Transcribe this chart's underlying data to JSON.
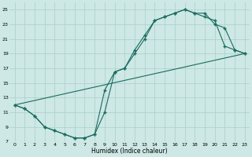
{
  "xlabel": "Humidex (Indice chaleur)",
  "background_color": "#cde8e5",
  "grid_color": "#aacfcc",
  "line_color": "#1a6b5e",
  "line1_x": [
    0,
    1,
    2,
    3,
    4,
    5,
    6,
    7,
    8,
    9,
    10,
    11,
    12,
    13,
    14,
    15,
    16,
    17,
    18,
    19,
    20,
    21,
    22,
    23
  ],
  "line1_y": [
    12,
    11.5,
    10.5,
    9.0,
    8.5,
    8.0,
    7.5,
    7.5,
    8.0,
    14.0,
    16.5,
    17.0,
    19.5,
    21.5,
    23.5,
    24.0,
    24.5,
    25.0,
    24.5,
    24.5,
    23.0,
    22.5,
    19.5,
    19.0
  ],
  "line2_x": [
    0,
    1,
    2,
    3,
    4,
    5,
    6,
    7,
    8,
    9,
    10,
    11,
    12,
    13,
    14,
    15,
    16,
    17,
    18,
    19,
    20,
    21,
    22,
    23
  ],
  "line2_y": [
    12,
    11.5,
    10.5,
    9.0,
    8.5,
    8.0,
    7.5,
    7.5,
    8.0,
    11.0,
    16.5,
    17.0,
    19.0,
    21.0,
    23.5,
    24.0,
    24.5,
    25.0,
    24.5,
    24.0,
    23.5,
    20.0,
    19.5,
    19.0
  ],
  "line3_x": [
    0,
    23
  ],
  "line3_y": [
    12,
    19
  ],
  "ylim": [
    7,
    26
  ],
  "xlim": [
    -0.5,
    23.5
  ],
  "yticks": [
    7,
    9,
    11,
    13,
    15,
    17,
    19,
    21,
    23,
    25
  ],
  "xticks": [
    0,
    1,
    2,
    3,
    4,
    5,
    6,
    7,
    8,
    9,
    10,
    11,
    12,
    13,
    14,
    15,
    16,
    17,
    18,
    19,
    20,
    21,
    22,
    23
  ]
}
